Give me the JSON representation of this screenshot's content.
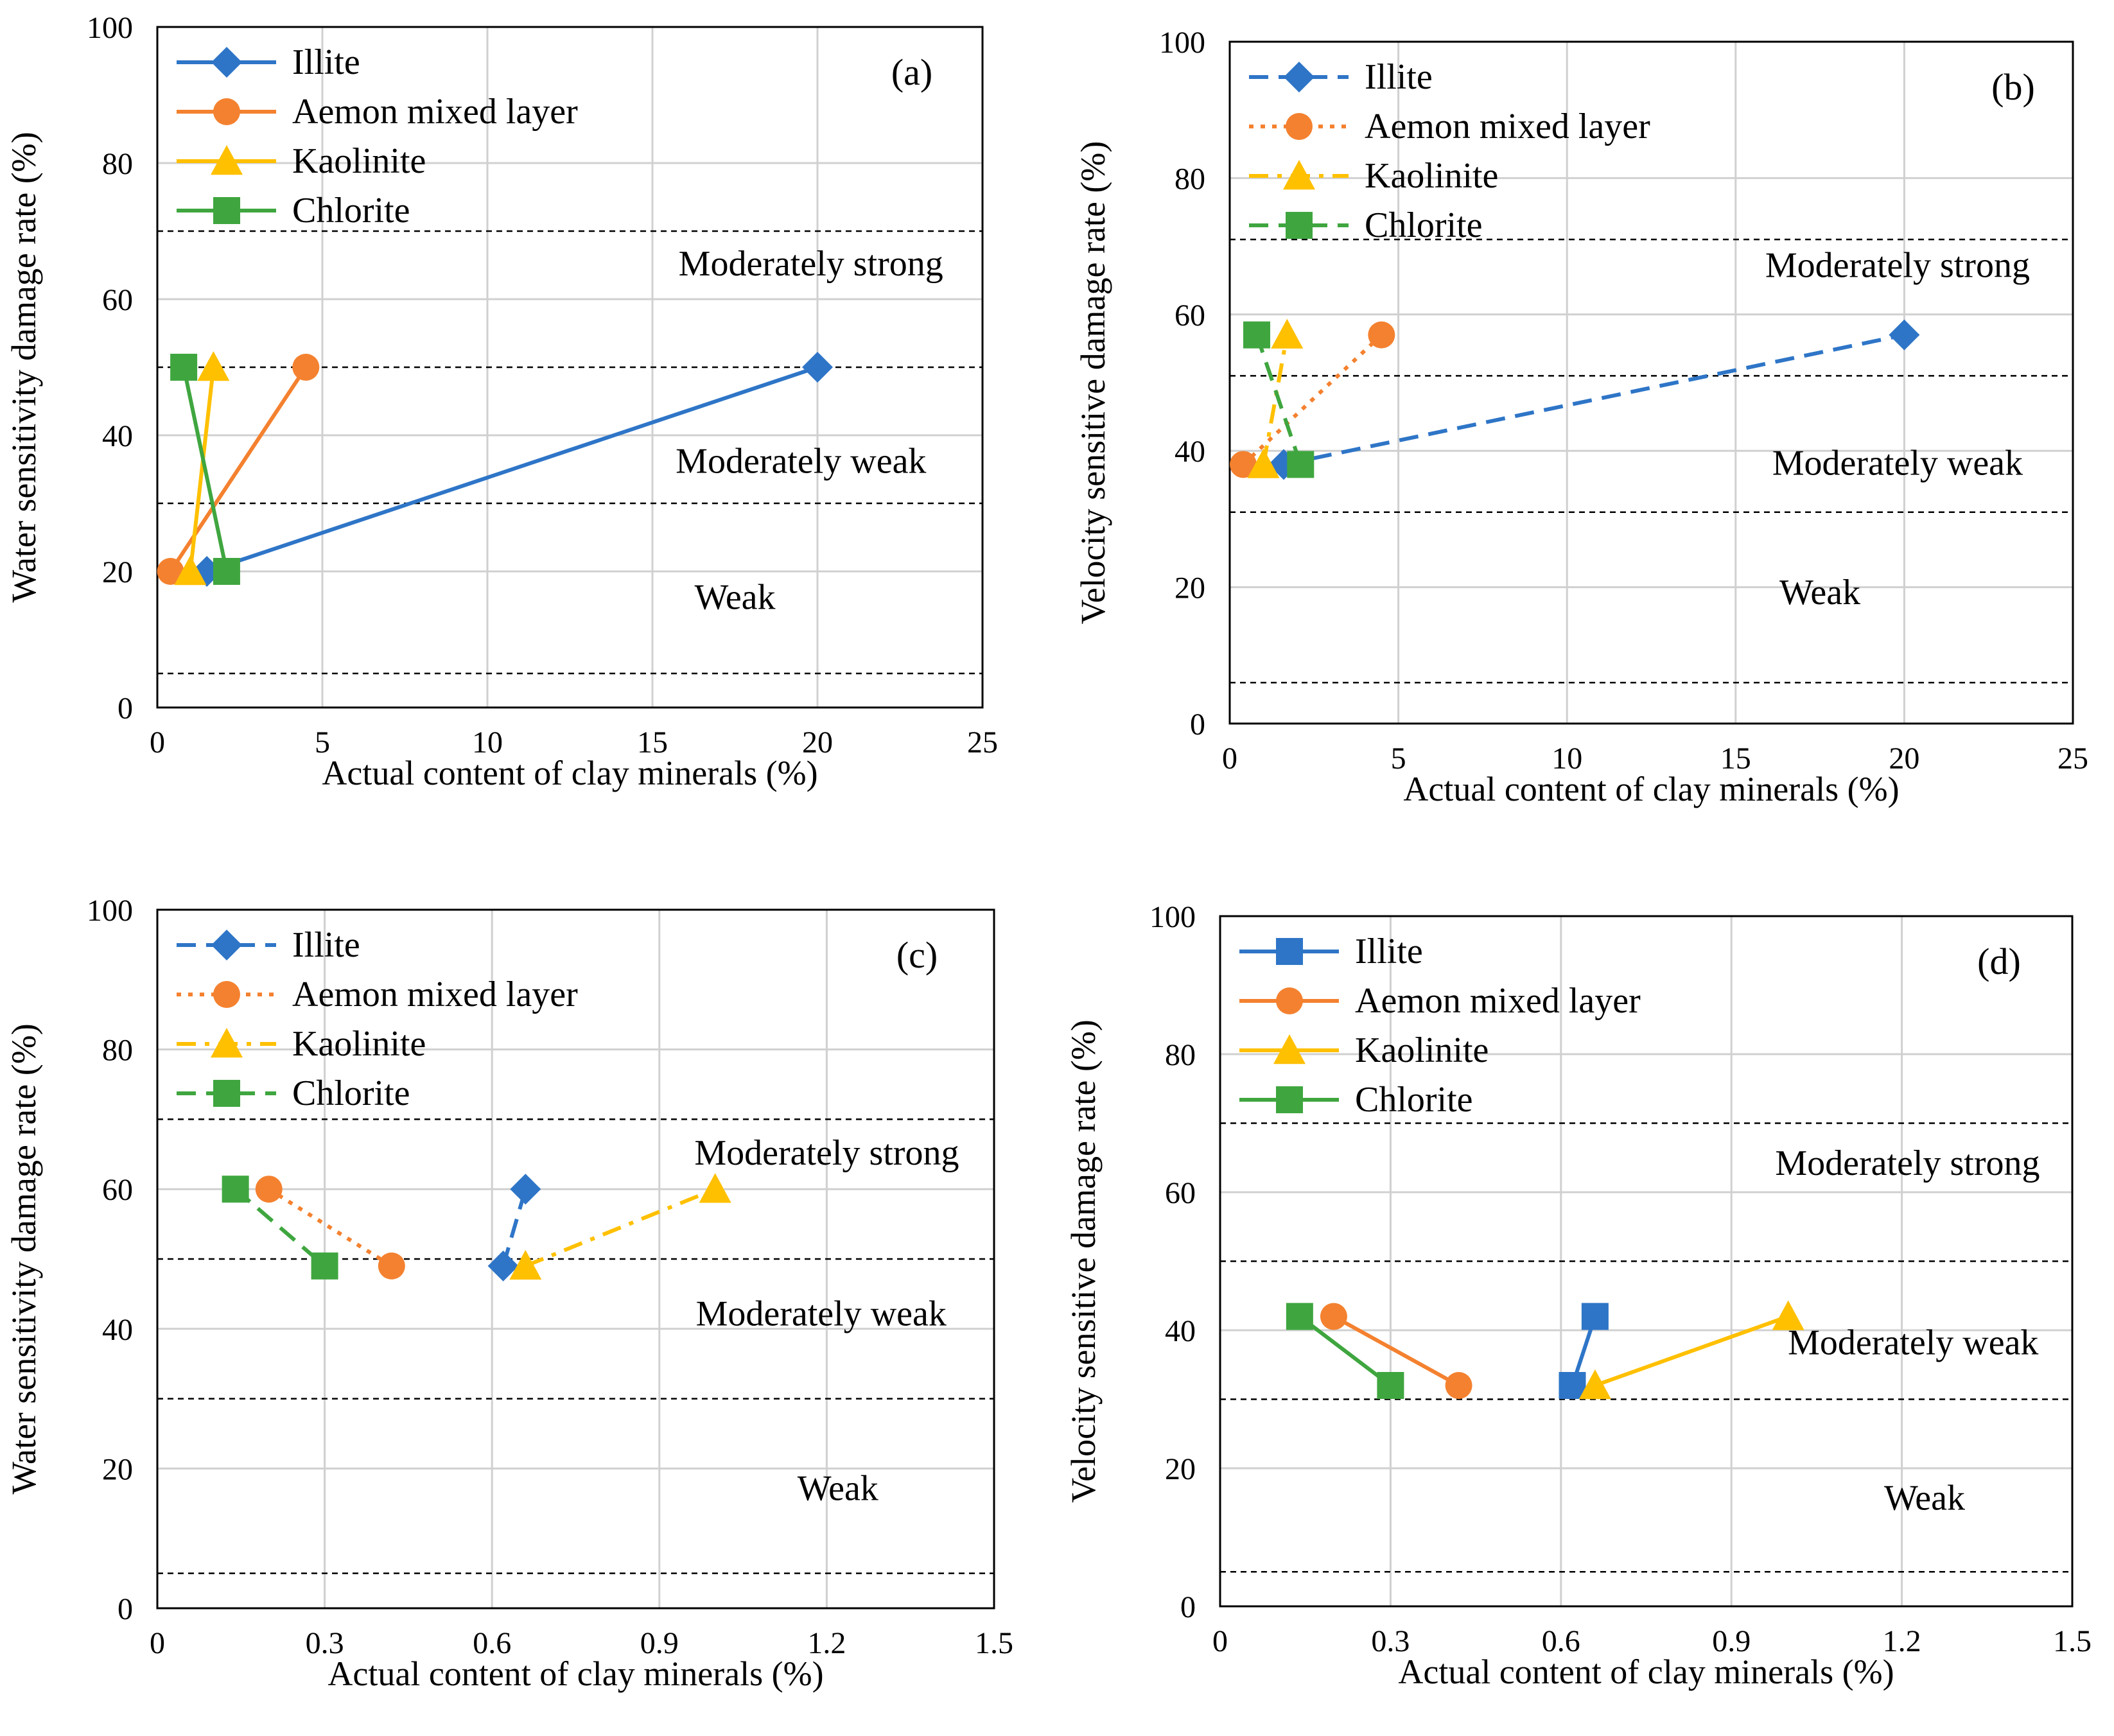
{
  "colors": {
    "Illite": "#2e75c7",
    "Aemon mixed layer": "#f4812f",
    "Kaolinite": "#ffc000",
    "Chlorite": "#3fa63f",
    "grid": "#d0d0d0",
    "axis": "#000000",
    "threshold": "#000000"
  },
  "chart_data": [
    {
      "id": "a",
      "type": "line",
      "panel_label": "(a)",
      "xlabel": "Actual content of clay minerals (%)",
      "ylabel": "Water sensitivity damage rate (%)",
      "xlim": [
        0,
        25
      ],
      "ylim": [
        0,
        100
      ],
      "xticks": [
        0,
        5,
        10,
        15,
        20,
        25
      ],
      "xtick_labels": [
        "0",
        "5",
        "10",
        "15",
        "20",
        "25"
      ],
      "yticks": [
        0,
        20,
        40,
        60,
        80,
        100
      ],
      "ytick_labels": [
        "0",
        "20",
        "40",
        "60",
        "80",
        "100"
      ],
      "thresholds": [
        5,
        30,
        50,
        70
      ],
      "zones": [
        {
          "label": "Moderately strong",
          "x": 19.8,
          "y": 63.5
        },
        {
          "label": "Moderately weak",
          "x": 19.5,
          "y": 34.5
        },
        {
          "label": "Weak",
          "x": 17.5,
          "y": 14.5
        }
      ],
      "legend_position": "top-left",
      "series": [
        {
          "name": "Illite",
          "marker": "diamond",
          "dash": "solid",
          "x": [
            1.5,
            20
          ],
          "y": [
            20,
            50
          ]
        },
        {
          "name": "Aemon mixed layer",
          "marker": "circle",
          "dash": "solid",
          "x": [
            0.4,
            4.5
          ],
          "y": [
            20,
            50
          ]
        },
        {
          "name": "Kaolinite",
          "marker": "triangle",
          "dash": "solid",
          "x": [
            1.0,
            1.7
          ],
          "y": [
            20,
            50
          ]
        },
        {
          "name": "Chlorite",
          "marker": "square",
          "dash": "solid",
          "x": [
            2.1,
            0.8
          ],
          "y": [
            20,
            50
          ]
        }
      ]
    },
    {
      "id": "b",
      "type": "line",
      "panel_label": "(b)",
      "xlabel": "Actual content of clay minerals (%)",
      "ylabel": "Velocity sensitive damage rate (%)",
      "xlim": [
        0,
        25
      ],
      "ylim": [
        0,
        100
      ],
      "xticks": [
        0,
        5,
        10,
        15,
        20,
        25
      ],
      "xtick_labels": [
        "0",
        "5",
        "10",
        "15",
        "20",
        "25"
      ],
      "yticks": [
        0,
        20,
        40,
        60,
        80,
        100
      ],
      "ytick_labels": [
        "0",
        "20",
        "40",
        "60",
        "80",
        "100"
      ],
      "thresholds": [
        6,
        31,
        51,
        71
      ],
      "zones": [
        {
          "label": "Moderately strong",
          "x": 19.8,
          "y": 65.5
        },
        {
          "label": "Moderately weak",
          "x": 19.8,
          "y": 36.5
        },
        {
          "label": "Weak",
          "x": 17.5,
          "y": 17.5
        }
      ],
      "legend_position": "top-left",
      "series": [
        {
          "name": "Illite",
          "marker": "diamond",
          "dash": "dashed",
          "x": [
            1.6,
            20
          ],
          "y": [
            38,
            57
          ]
        },
        {
          "name": "Aemon mixed layer",
          "marker": "circle",
          "dash": "dotted",
          "x": [
            0.4,
            4.5
          ],
          "y": [
            38,
            57
          ]
        },
        {
          "name": "Kaolinite",
          "marker": "triangle",
          "dash": "dashdot",
          "x": [
            1.0,
            1.7
          ],
          "y": [
            38,
            57
          ]
        },
        {
          "name": "Chlorite",
          "marker": "square",
          "dash": "dashed",
          "x": [
            2.1,
            0.8
          ],
          "y": [
            38,
            57
          ]
        }
      ]
    },
    {
      "id": "c",
      "type": "line",
      "panel_label": "(c)",
      "xlabel": "Actual content of clay minerals (%)",
      "ylabel": "Water sensitivity damage rate (%)",
      "xlim": [
        0,
        1.5
      ],
      "ylim": [
        0,
        100
      ],
      "xticks": [
        0,
        0.3,
        0.6,
        0.9,
        1.2,
        1.5
      ],
      "xtick_labels": [
        "0",
        "0.3",
        "0.6",
        "0.9",
        "1.2",
        "1.5"
      ],
      "yticks": [
        0,
        20,
        40,
        60,
        80,
        100
      ],
      "ytick_labels": [
        "0",
        "20",
        "40",
        "60",
        "80",
        "100"
      ],
      "thresholds": [
        5,
        30,
        50,
        70
      ],
      "zones": [
        {
          "label": "Moderately strong",
          "x": 1.2,
          "y": 63.5
        },
        {
          "label": "Moderately weak",
          "x": 1.19,
          "y": 40.5
        },
        {
          "label": "Weak",
          "x": 1.22,
          "y": 15.5
        }
      ],
      "legend_position": "top-left",
      "series": [
        {
          "name": "Illite",
          "marker": "diamond",
          "dash": "dashed",
          "x": [
            0.62,
            0.66
          ],
          "y": [
            49,
            60
          ]
        },
        {
          "name": "Aemon mixed layer",
          "marker": "circle",
          "dash": "dotted",
          "x": [
            0.2,
            0.42
          ],
          "y": [
            60,
            49
          ]
        },
        {
          "name": "Kaolinite",
          "marker": "triangle",
          "dash": "dashdot",
          "x": [
            0.66,
            1.0
          ],
          "y": [
            49,
            60
          ]
        },
        {
          "name": "Chlorite",
          "marker": "square",
          "dash": "dashed",
          "x": [
            0.14,
            0.3
          ],
          "y": [
            60,
            49
          ]
        }
      ]
    },
    {
      "id": "d",
      "type": "line",
      "panel_label": "(d)",
      "xlabel": "Actual content of clay minerals (%)",
      "ylabel": "Velocity sensitive damage rate (%)",
      "xlim": [
        0,
        1.5
      ],
      "ylim": [
        0,
        100
      ],
      "xticks": [
        0,
        0.3,
        0.6,
        0.9,
        1.2,
        1.5
      ],
      "xtick_labels": [
        "0",
        "0.3",
        "0.6",
        "0.9",
        "1.2",
        "1.5"
      ],
      "yticks": [
        0,
        20,
        40,
        60,
        80,
        100
      ],
      "ytick_labels": [
        "0",
        "20",
        "40",
        "60",
        "80",
        "100"
      ],
      "thresholds": [
        5,
        30,
        50,
        70
      ],
      "zones": [
        {
          "label": "Moderately strong",
          "x": 1.21,
          "y": 62.5
        },
        {
          "label": "Moderately weak",
          "x": 1.22,
          "y": 36.5
        },
        {
          "label": "Weak",
          "x": 1.24,
          "y": 14.0
        }
      ],
      "legend_position": "top-left",
      "series": [
        {
          "name": "Illite",
          "marker": "square",
          "dash": "solid",
          "x": [
            0.62,
            0.66
          ],
          "y": [
            32,
            42
          ]
        },
        {
          "name": "Aemon mixed layer",
          "marker": "circle",
          "dash": "solid",
          "x": [
            0.2,
            0.42
          ],
          "y": [
            42,
            32
          ]
        },
        {
          "name": "Kaolinite",
          "marker": "triangle",
          "dash": "solid",
          "x": [
            0.66,
            1.0
          ],
          "y": [
            32,
            42
          ]
        },
        {
          "name": "Chlorite",
          "marker": "square",
          "dash": "solid",
          "x": [
            0.14,
            0.3
          ],
          "y": [
            42,
            32
          ]
        }
      ]
    }
  ]
}
